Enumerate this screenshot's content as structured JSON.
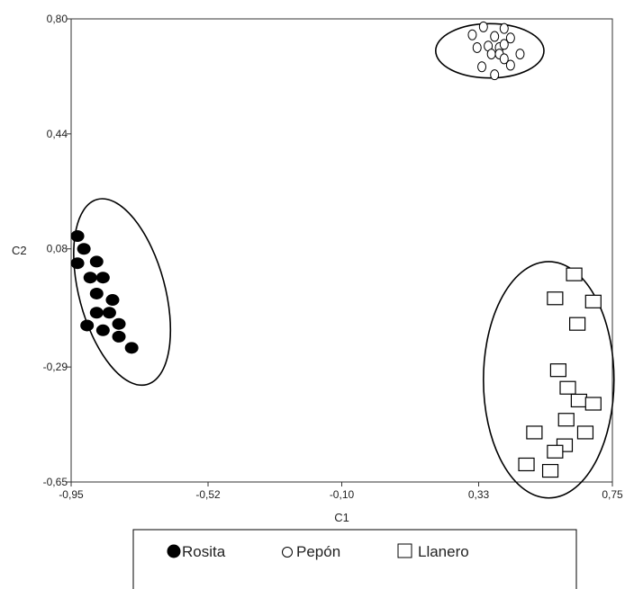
{
  "chart_data": {
    "type": "scatter",
    "xlabel": "C1",
    "ylabel": "C2",
    "xlim": [
      -0.95,
      0.75
    ],
    "ylim": [
      -0.65,
      0.8
    ],
    "x_ticks": [
      -0.95,
      -0.52,
      -0.1,
      0.33,
      0.75
    ],
    "x_tick_labels": [
      "-0,95",
      "-0,52",
      "-0,10",
      "0,33",
      "0,75"
    ],
    "y_ticks": [
      -0.65,
      -0.29,
      0.08,
      0.44,
      0.8
    ],
    "y_tick_labels": [
      "-0,65",
      "-0,29",
      "0,08",
      "0,44",
      "0,80"
    ],
    "grid": false,
    "legend_position": "bottom",
    "series": [
      {
        "name": "Rosita",
        "marker": "filled-circle",
        "color": "#000000",
        "ellipse": {
          "cx": -0.79,
          "cy": -0.055,
          "rx": 0.135,
          "ry": 0.3,
          "angle_deg": -15
        },
        "points": [
          {
            "x": -0.93,
            "y": 0.12
          },
          {
            "x": -0.91,
            "y": 0.08
          },
          {
            "x": -0.93,
            "y": 0.035
          },
          {
            "x": -0.87,
            "y": 0.04
          },
          {
            "x": -0.89,
            "y": -0.01
          },
          {
            "x": -0.85,
            "y": -0.01
          },
          {
            "x": -0.87,
            "y": -0.06
          },
          {
            "x": -0.82,
            "y": -0.08
          },
          {
            "x": -0.87,
            "y": -0.12
          },
          {
            "x": -0.83,
            "y": -0.12
          },
          {
            "x": -0.8,
            "y": -0.155
          },
          {
            "x": -0.9,
            "y": -0.16
          },
          {
            "x": -0.85,
            "y": -0.175
          },
          {
            "x": -0.8,
            "y": -0.195
          },
          {
            "x": -0.76,
            "y": -0.23
          }
        ]
      },
      {
        "name": "Pepón",
        "marker": "open-circle",
        "color": "#000000",
        "ellipse": {
          "cx": 0.365,
          "cy": 0.7,
          "rx": 0.17,
          "ry": 0.085,
          "angle_deg": 0
        },
        "points": [
          {
            "x": 0.345,
            "y": 0.775
          },
          {
            "x": 0.41,
            "y": 0.77
          },
          {
            "x": 0.31,
            "y": 0.75
          },
          {
            "x": 0.38,
            "y": 0.745
          },
          {
            "x": 0.43,
            "y": 0.74
          },
          {
            "x": 0.36,
            "y": 0.715
          },
          {
            "x": 0.325,
            "y": 0.71
          },
          {
            "x": 0.395,
            "y": 0.71
          },
          {
            "x": 0.41,
            "y": 0.72
          },
          {
            "x": 0.37,
            "y": 0.69
          },
          {
            "x": 0.395,
            "y": 0.69
          },
          {
            "x": 0.46,
            "y": 0.69
          },
          {
            "x": 0.41,
            "y": 0.675
          },
          {
            "x": 0.43,
            "y": 0.655
          },
          {
            "x": 0.34,
            "y": 0.65
          },
          {
            "x": 0.38,
            "y": 0.625
          }
        ]
      },
      {
        "name": "Llanero",
        "marker": "open-square",
        "color": "#000000",
        "ellipse": {
          "cx": 0.55,
          "cy": -0.33,
          "rx": 0.205,
          "ry": 0.37,
          "angle_deg": 0
        },
        "points": [
          {
            "x": 0.63,
            "y": 0.0
          },
          {
            "x": 0.57,
            "y": -0.075
          },
          {
            "x": 0.69,
            "y": -0.085
          },
          {
            "x": 0.64,
            "y": -0.155
          },
          {
            "x": 0.58,
            "y": -0.3
          },
          {
            "x": 0.61,
            "y": -0.355
          },
          {
            "x": 0.645,
            "y": -0.395
          },
          {
            "x": 0.69,
            "y": -0.405
          },
          {
            "x": 0.605,
            "y": -0.455
          },
          {
            "x": 0.505,
            "y": -0.495
          },
          {
            "x": 0.665,
            "y": -0.495
          },
          {
            "x": 0.6,
            "y": -0.535
          },
          {
            "x": 0.57,
            "y": -0.555
          },
          {
            "x": 0.48,
            "y": -0.595
          },
          {
            "x": 0.555,
            "y": -0.615
          }
        ]
      }
    ]
  }
}
